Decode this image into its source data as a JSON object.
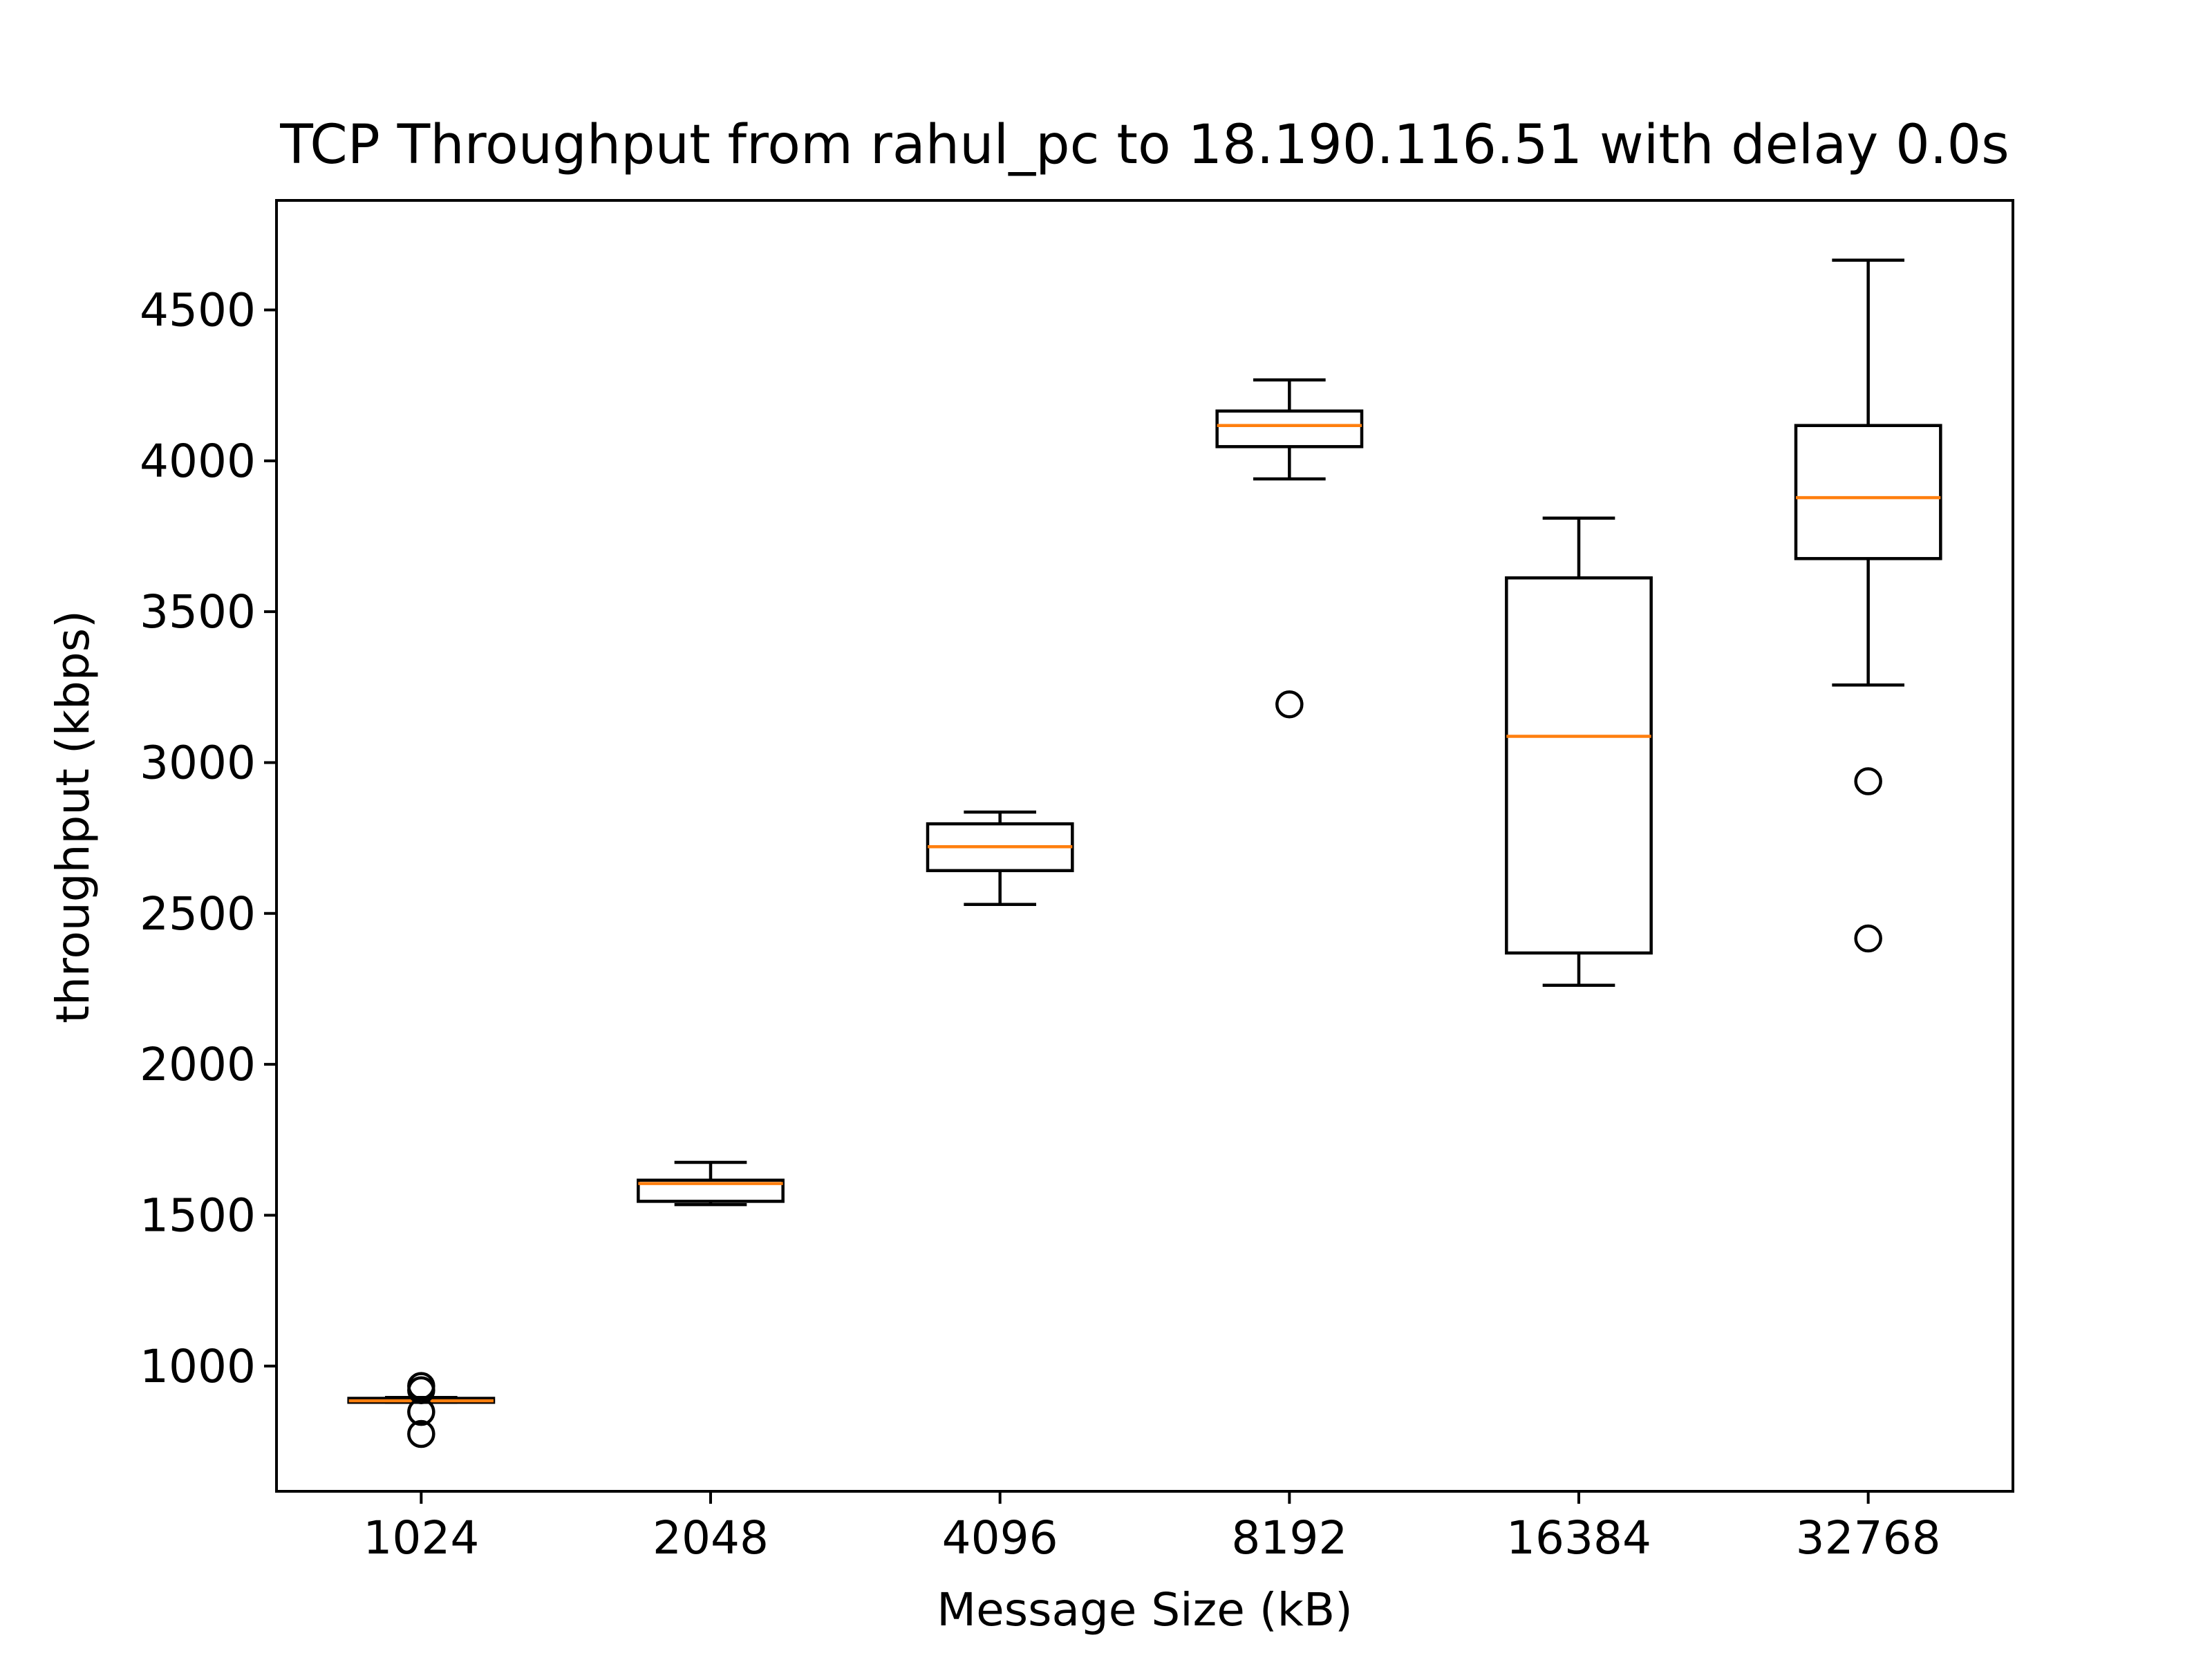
{
  "chart_data": {
    "type": "box",
    "title": "TCP Throughput from rahul_pc to 18.190.116.51 with delay 0.0s",
    "xlabel": "Message Size (kB)",
    "ylabel": "throughput (kbps)",
    "ylim": [
      585,
      4863
    ],
    "yticks": [
      1000,
      1500,
      2000,
      2500,
      3000,
      3500,
      4000,
      4500
    ],
    "grid": false,
    "categories": [
      "1024",
      "2048",
      "4096",
      "8192",
      "16384",
      "32768"
    ],
    "boxes": [
      {
        "category": "1024",
        "whisker_low": 880,
        "q1": 880,
        "median": 885,
        "q3": 893,
        "whisker_high": 896,
        "outliers": [
          775,
          848,
          920,
          934
        ]
      },
      {
        "category": "2048",
        "whisker_low": 1535,
        "q1": 1546,
        "median": 1605,
        "q3": 1616,
        "whisker_high": 1675,
        "outliers": []
      },
      {
        "category": "4096",
        "whisker_low": 2530,
        "q1": 2642,
        "median": 2721,
        "q3": 2797,
        "whisker_high": 2836,
        "outliers": []
      },
      {
        "category": "8192",
        "whisker_low": 3940,
        "q1": 4047,
        "median": 4117,
        "q3": 4165,
        "whisker_high": 4268,
        "outliers": [
          3193
        ]
      },
      {
        "category": "16384",
        "whisker_low": 2262,
        "q1": 2369,
        "median": 3087,
        "q3": 3612,
        "whisker_high": 3810,
        "outliers": []
      },
      {
        "category": "32768",
        "whisker_low": 3257,
        "q1": 3676,
        "median": 3878,
        "q3": 4117,
        "whisker_high": 4665,
        "outliers": [
          2938,
          2417
        ]
      }
    ],
    "colors": {
      "box": "#000000",
      "median": "#ff7f0e",
      "outlier": "#000000"
    }
  }
}
